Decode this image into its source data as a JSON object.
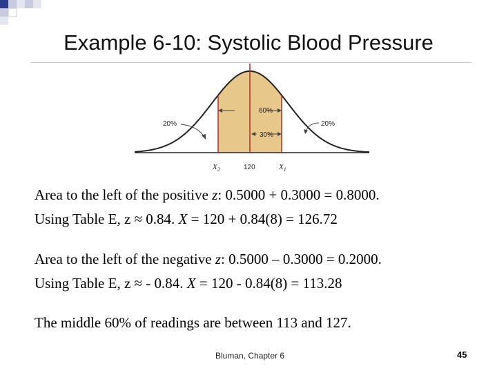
{
  "slide": {
    "title": "Example 6-10: Systolic Blood Pressure",
    "footer": "Bluman, Chapter 6",
    "page_number": "45"
  },
  "figure": {
    "left_tail_label": "20%",
    "right_tail_label": "20%",
    "middle_label": "60%",
    "half_label": "30%",
    "x_labels": [
      "X2",
      "120",
      "X1"
    ],
    "colors": {
      "shaded": "#e8c88a",
      "boundary": "#b02a2a",
      "curve": "#222222"
    }
  },
  "lines": {
    "line1": {
      "prefix": "Area to the left of the positive ",
      "var": "z",
      "suffix": ":  0.5000 + 0.3000 = 0.8000."
    },
    "line2": {
      "prefix": "Using Table E, z ≈ 0.84.   ",
      "var": "X",
      "suffix": " = 120 + 0.84(8) = 126.72"
    },
    "line3": {
      "prefix": "Area to the left of the negative ",
      "var": "z",
      "suffix": ":  0.5000 – 0.3000 = 0.2000."
    },
    "line4": {
      "prefix": "Using Table E, z ≈ - 0.84.   ",
      "var": "X",
      "suffix": " = 120 - 0.84(8) = 113.28"
    },
    "line5": "The middle 60% of readings are between 113 and 127."
  }
}
